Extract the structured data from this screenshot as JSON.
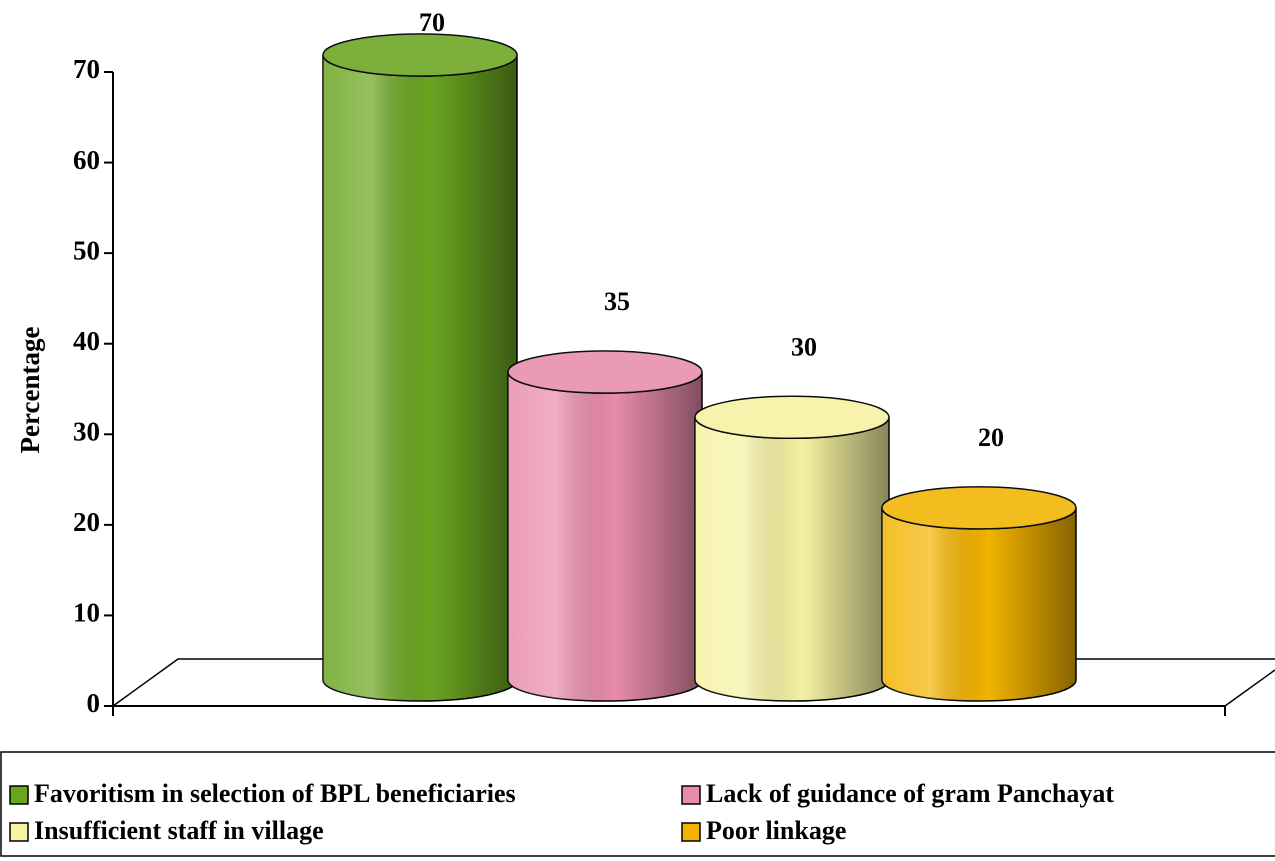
{
  "chart_data": {
    "type": "bar",
    "y_label": "Percentage",
    "categories": [
      null
    ],
    "series": [
      {
        "name": "Favoritism in selection of BPL beneficiaries",
        "color": "#6aa520",
        "values": [
          70
        ]
      },
      {
        "name": "Lack of guidance of gram Panchayat",
        "color": "#e98cab",
        "values": [
          35
        ]
      },
      {
        "name": "Insufficient staff in village",
        "color": "#f6f2a2",
        "values": [
          30
        ]
      },
      {
        "name": "Poor linkage",
        "color": "#f2b400",
        "values": [
          20
        ]
      }
    ],
    "ylim": [
      0,
      70
    ],
    "yticks": [
      0,
      10,
      20,
      30,
      40,
      50,
      60,
      70
    ]
  }
}
